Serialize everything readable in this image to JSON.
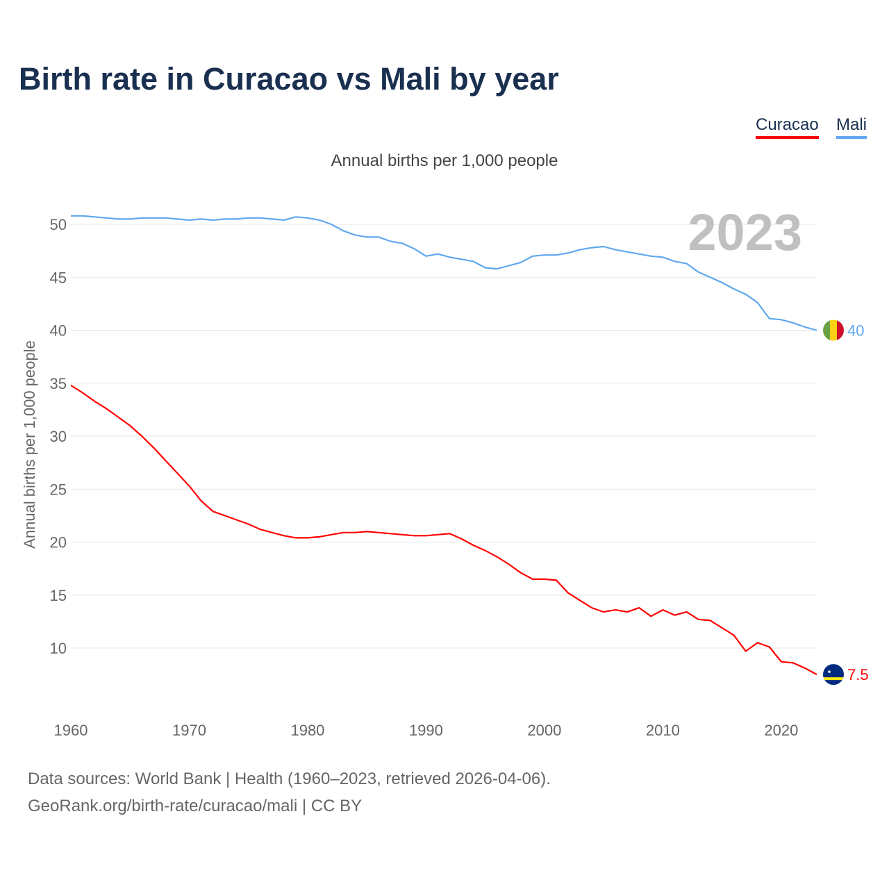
{
  "title": "Birth rate in Curacao vs Mali by year",
  "legend": [
    "Curacao",
    "Mali"
  ],
  "subtitle": "Annual births per 1,000 people",
  "footer": {
    "source": "Data sources: World Bank | Health (1960–2023, retrieved 2026-04-06).",
    "credit": "GeoRank.org/birth-rate/curacao/mali | CC BY"
  },
  "chart_data": {
    "type": "line",
    "title": "Birth rate in Curacao vs Mali by year",
    "ylabel": "Annual births per 1,000 people",
    "xlabel": "",
    "year_label": "2023",
    "xlim": [
      1960,
      2023
    ],
    "ylim": [
      5,
      52
    ],
    "yticks": [
      10,
      15,
      20,
      25,
      30,
      35,
      40,
      45,
      50
    ],
    "xticks": [
      1960,
      1970,
      1980,
      1990,
      2000,
      2010,
      2020
    ],
    "grid": true,
    "legend_position": "top-right",
    "x_start": 1960,
    "series": [
      {
        "name": "Curacao",
        "color": "#ff0000",
        "end_label": "7.5",
        "values": [
          34.8,
          34.1,
          33.3,
          32.6,
          31.8,
          31.0,
          30.0,
          28.9,
          27.7,
          26.5,
          25.3,
          23.9,
          22.9,
          22.5,
          22.1,
          21.7,
          21.2,
          20.9,
          20.6,
          20.4,
          20.4,
          20.5,
          20.7,
          20.9,
          20.9,
          21.0,
          20.9,
          20.8,
          20.7,
          20.6,
          20.6,
          20.7,
          20.8,
          20.3,
          19.7,
          19.2,
          18.6,
          17.9,
          17.1,
          16.5,
          16.5,
          16.4,
          15.2,
          14.5,
          13.8,
          13.4,
          13.6,
          13.4,
          13.8,
          13.0,
          13.6,
          13.1,
          13.4,
          12.7,
          12.6,
          11.9,
          11.2,
          9.7,
          10.5,
          10.1,
          8.7,
          8.6,
          8.1,
          7.5
        ]
      },
      {
        "name": "Mali",
        "color": "#5fa8ef",
        "end_label": "40",
        "values": [
          50.8,
          50.8,
          50.7,
          50.6,
          50.5,
          50.5,
          50.6,
          50.6,
          50.6,
          50.5,
          50.4,
          50.5,
          50.4,
          50.5,
          50.5,
          50.6,
          50.6,
          50.5,
          50.4,
          50.7,
          50.6,
          50.4,
          50.0,
          49.4,
          49.0,
          48.8,
          48.8,
          48.4,
          48.2,
          47.7,
          47.0,
          47.2,
          46.9,
          46.7,
          46.5,
          45.9,
          45.8,
          46.1,
          46.4,
          47.0,
          47.1,
          47.1,
          47.3,
          47.6,
          47.8,
          47.9,
          47.6,
          47.4,
          47.2,
          47.0,
          46.9,
          46.5,
          46.3,
          45.5,
          45.0,
          44.5,
          43.9,
          43.4,
          42.6,
          41.1,
          41.0,
          40.7,
          40.3,
          40.0
        ]
      }
    ]
  }
}
